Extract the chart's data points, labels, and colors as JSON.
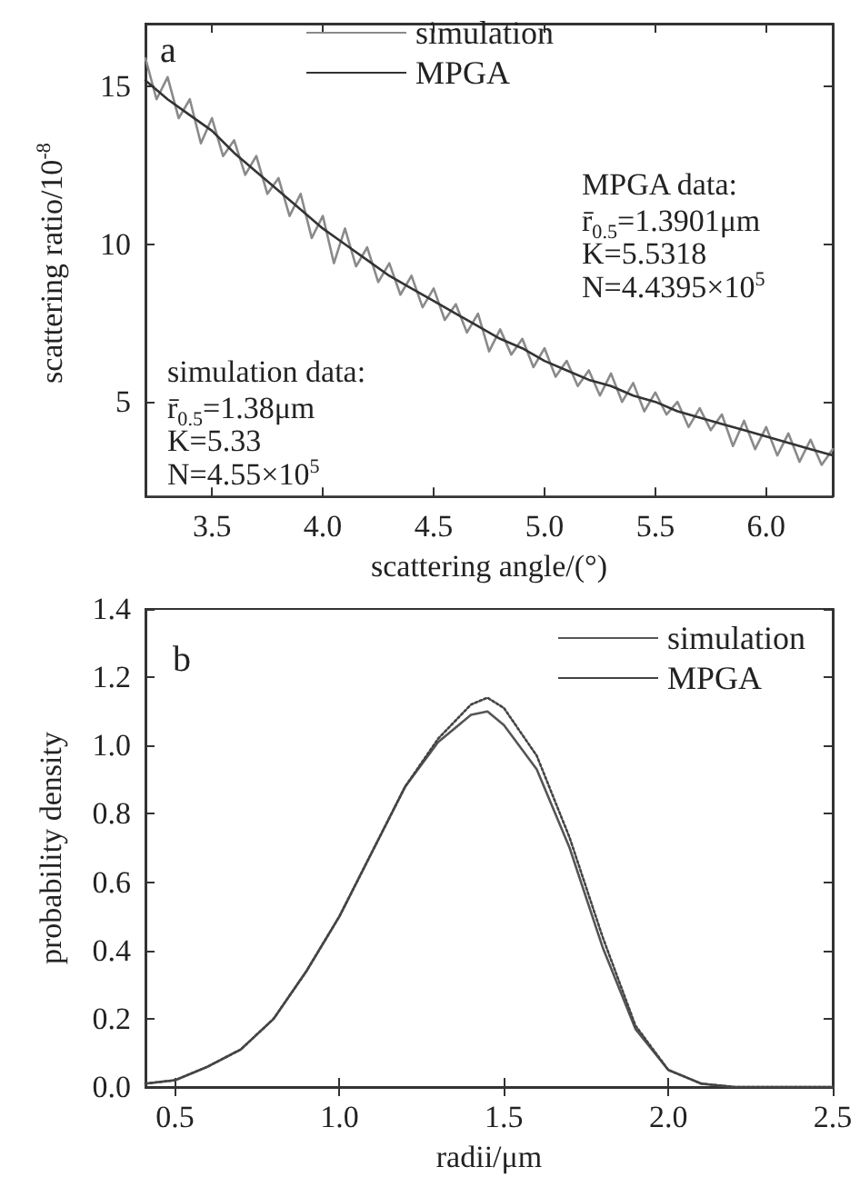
{
  "chart_data": [
    {
      "type": "line",
      "xlabel": "scattering angle/(°)",
      "ylabel": "scattering ratio/10$^{-8}$",
      "xlim": [
        3.2,
        6.3
      ],
      "ylim": [
        2,
        17
      ],
      "xticks": [
        3.5,
        {
          "value": 4,
          "label": "4.0"
        },
        4.5,
        {
          "value": 5,
          "label": "5.0"
        },
        5.5,
        {
          "value": 6,
          "label": "6.0"
        }
      ],
      "yticks": [
        5,
        10,
        15
      ],
      "legend": "top",
      "grid": false,
      "marker": "none",
      "annotations": [
        "a",
        "MPGA data:",
        "r̄$_{0.5}$=1.3901μm",
        "K=5.5318",
        "N=4.4395×10$^{5}$",
        "simulation data:",
        "r̄$_{0.5}$=1.38μm",
        "K=5.33",
        "N=4.55×10$^{5}$"
      ],
      "series": [
        {
          "name": "simulation",
          "color": "#8a8a8a",
          "line_style": "solid",
          "x": [
            3.2,
            3.25,
            3.3,
            3.35,
            3.4,
            3.45,
            3.5,
            3.55,
            3.6,
            3.65,
            3.7,
            3.75,
            3.8,
            3.85,
            3.9,
            3.95,
            4.0,
            4.05,
            4.1,
            4.15,
            4.2,
            4.25,
            4.3,
            4.35,
            4.4,
            4.45,
            4.5,
            4.55,
            4.6,
            4.65,
            4.7,
            4.75,
            4.8,
            4.85,
            4.9,
            4.95,
            5.0,
            5.05,
            5.1,
            5.15,
            5.2,
            5.25,
            5.3,
            5.35,
            5.4,
            5.45,
            5.5,
            5.55,
            5.6,
            5.65,
            5.7,
            5.75,
            5.8,
            5.85,
            5.9,
            5.95,
            6.0,
            6.05,
            6.1,
            6.15,
            6.2,
            6.25,
            6.3
          ],
          "values": [
            15.9,
            14.6,
            15.3,
            14.0,
            14.6,
            13.2,
            14.0,
            12.8,
            13.3,
            12.2,
            12.8,
            11.6,
            12.1,
            10.9,
            11.6,
            10.2,
            10.9,
            9.4,
            10.5,
            9.3,
            9.9,
            8.8,
            9.4,
            8.4,
            9.0,
            8.0,
            8.6,
            7.6,
            8.1,
            7.2,
            7.8,
            6.6,
            7.3,
            6.5,
            7.0,
            6.1,
            6.7,
            5.8,
            6.3,
            5.5,
            6.0,
            5.2,
            5.9,
            5.0,
            5.6,
            4.7,
            5.3,
            4.6,
            5.0,
            4.2,
            4.8,
            4.1,
            4.6,
            3.6,
            4.4,
            3.5,
            4.2,
            3.3,
            4.0,
            3.1,
            3.8,
            3.0,
            3.5
          ]
        },
        {
          "name": "MPGA",
          "color": "#333333",
          "line_style": "solid",
          "x": [
            3.2,
            3.3,
            3.4,
            3.5,
            3.6,
            3.7,
            3.8,
            3.9,
            4.0,
            4.1,
            4.2,
            4.3,
            4.4,
            4.5,
            4.6,
            4.7,
            4.8,
            4.9,
            5.0,
            5.1,
            5.2,
            5.3,
            5.4,
            5.5,
            5.6,
            5.7,
            5.8,
            5.9,
            6.0,
            6.1,
            6.2,
            6.3
          ],
          "values": [
            15.2,
            14.6,
            14.1,
            13.6,
            12.9,
            12.3,
            11.7,
            11.1,
            10.5,
            10.0,
            9.5,
            9.0,
            8.6,
            8.2,
            7.8,
            7.4,
            7.0,
            6.7,
            6.3,
            6.0,
            5.7,
            5.5,
            5.2,
            5.0,
            4.7,
            4.5,
            4.3,
            4.1,
            3.9,
            3.7,
            3.5,
            3.3
          ]
        }
      ]
    },
    {
      "type": "line",
      "xlabel": "radii/μm",
      "ylabel": "probability density",
      "xlim": [
        0.41,
        2.5
      ],
      "ylim": [
        0,
        1.4
      ],
      "xticks": [
        0.5,
        {
          "value": 1,
          "label": "1.0"
        },
        1.5,
        {
          "value": 2,
          "label": "2.0"
        },
        2.5
      ],
      "yticks": [
        {
          "value": 0,
          "label": "0.0"
        },
        0.2,
        0.4,
        0.6,
        0.8,
        {
          "value": 1,
          "label": "1.0"
        },
        1.2,
        1.4
      ],
      "legend": "top right",
      "grid": false,
      "marker": "none",
      "annotations": [
        "b"
      ],
      "series": [
        {
          "name": "simulation",
          "color": "#555555",
          "line_style": "solid",
          "x": [
            0.41,
            0.5,
            0.6,
            0.7,
            0.8,
            0.9,
            1.0,
            1.1,
            1.2,
            1.3,
            1.4,
            1.45,
            1.5,
            1.6,
            1.7,
            1.8,
            1.9,
            2.0,
            2.1,
            2.2,
            2.3,
            2.5
          ],
          "values": [
            0.01,
            0.02,
            0.06,
            0.11,
            0.2,
            0.34,
            0.5,
            0.69,
            0.88,
            1.01,
            1.09,
            1.1,
            1.06,
            0.93,
            0.7,
            0.41,
            0.17,
            0.05,
            0.01,
            0,
            0,
            0
          ]
        },
        {
          "name": "MPGA",
          "color": "#444444",
          "line_style": "dotted",
          "x": [
            0.41,
            0.5,
            0.6,
            0.7,
            0.8,
            0.9,
            1.0,
            1.1,
            1.2,
            1.3,
            1.4,
            1.45,
            1.5,
            1.6,
            1.7,
            1.8,
            1.9,
            2.0,
            2.1,
            2.2,
            2.3,
            2.5
          ],
          "values": [
            0.01,
            0.02,
            0.06,
            0.11,
            0.2,
            0.34,
            0.5,
            0.69,
            0.88,
            1.02,
            1.12,
            1.14,
            1.11,
            0.97,
            0.73,
            0.44,
            0.18,
            0.05,
            0.01,
            0,
            0,
            0
          ]
        }
      ]
    }
  ]
}
